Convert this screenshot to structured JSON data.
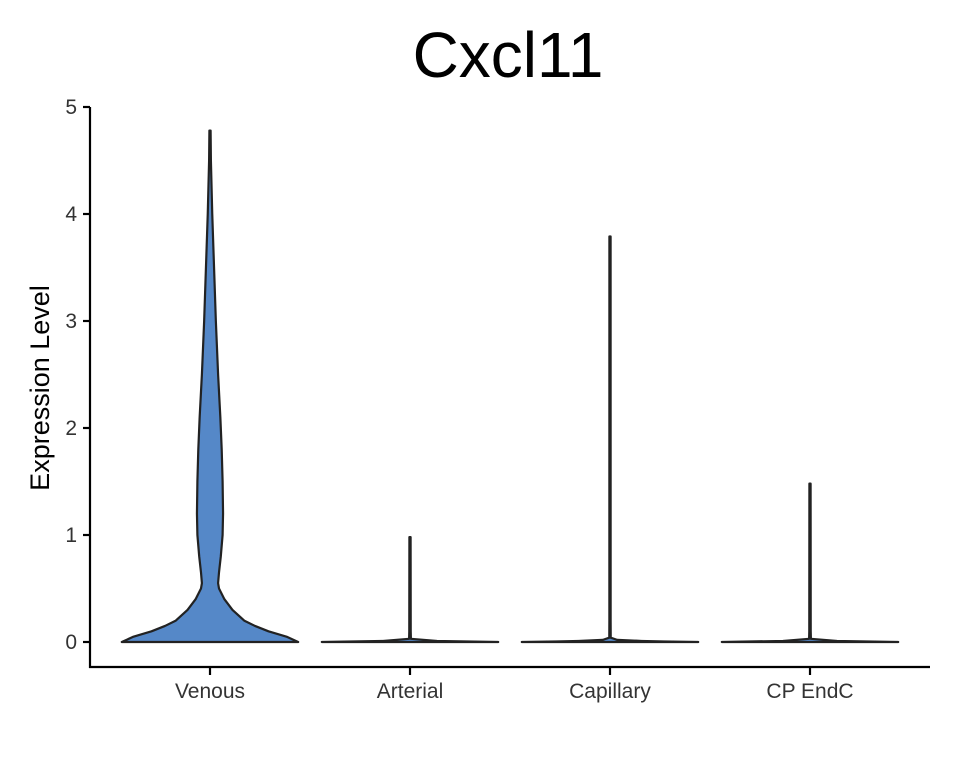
{
  "chart_data": {
    "type": "violin",
    "title": "Cxcl11",
    "xlabel": "",
    "ylabel": "Expression Level",
    "ylim": [
      0,
      5
    ],
    "yticks": [
      0,
      1,
      2,
      3,
      4,
      5
    ],
    "categories": [
      "Venous",
      "Arterial",
      "Capillary",
      "CP EndC"
    ],
    "fill_color": "#5588C8",
    "outline_color": "#222222",
    "grid": false,
    "legend": "none",
    "violins": [
      {
        "category": "Venous",
        "max": 4.78,
        "profile": [
          [
            0.0,
            0.98
          ],
          [
            0.05,
            0.85
          ],
          [
            0.1,
            0.65
          ],
          [
            0.15,
            0.5
          ],
          [
            0.2,
            0.38
          ],
          [
            0.3,
            0.25
          ],
          [
            0.4,
            0.16
          ],
          [
            0.5,
            0.1
          ],
          [
            0.55,
            0.09
          ],
          [
            0.65,
            0.1
          ],
          [
            0.8,
            0.12
          ],
          [
            1.0,
            0.14
          ],
          [
            1.2,
            0.145
          ],
          [
            1.5,
            0.14
          ],
          [
            1.8,
            0.13
          ],
          [
            2.1,
            0.115
          ],
          [
            2.5,
            0.09
          ],
          [
            3.0,
            0.065
          ],
          [
            3.5,
            0.045
          ],
          [
            4.0,
            0.025
          ],
          [
            4.5,
            0.01
          ],
          [
            4.78,
            0.0
          ]
        ]
      },
      {
        "category": "Arterial",
        "max": 0.98,
        "profile": [
          [
            0.0,
            0.98
          ],
          [
            0.01,
            0.3
          ],
          [
            0.03,
            0.01
          ],
          [
            0.1,
            0.008
          ],
          [
            0.98,
            0.005
          ]
        ]
      },
      {
        "category": "Capillary",
        "max": 3.79,
        "profile": [
          [
            0.0,
            0.98
          ],
          [
            0.005,
            0.6
          ],
          [
            0.01,
            0.35
          ],
          [
            0.02,
            0.08
          ],
          [
            0.04,
            0.008
          ],
          [
            0.2,
            0.007
          ],
          [
            3.79,
            0.005
          ]
        ]
      },
      {
        "category": "CP EndC",
        "max": 1.48,
        "profile": [
          [
            0.0,
            0.98
          ],
          [
            0.01,
            0.3
          ],
          [
            0.03,
            0.01
          ],
          [
            0.1,
            0.008
          ],
          [
            1.48,
            0.005
          ]
        ]
      }
    ]
  }
}
